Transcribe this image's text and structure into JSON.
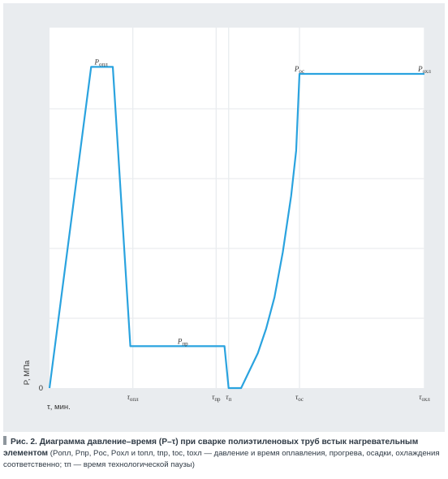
{
  "chart_data": {
    "type": "line",
    "ylabel": "P, МПа",
    "xlabel": "τ, мин.",
    "y_zero_label": "0",
    "x_ticks": [
      {
        "value": 1.0,
        "main": "τ",
        "sub": "опл"
      },
      {
        "value": 2.0,
        "main": "τ",
        "sub": "пр"
      },
      {
        "value": 2.15,
        "main": "τ",
        "sub": "п"
      },
      {
        "value": 3.0,
        "main": "τ",
        "sub": "ос"
      },
      {
        "value": 4.5,
        "main": "τ",
        "sub": "охл"
      }
    ],
    "xlim": [
      0,
      4.5
    ],
    "ylim": [
      0,
      1.0
    ],
    "grid": true,
    "series": [
      {
        "color": "#2aa3df",
        "points": [
          [
            0,
            0
          ],
          [
            0.5,
            0.92
          ],
          [
            0.76,
            0.92
          ],
          [
            0.97,
            0.12
          ],
          [
            2.1,
            0.12
          ],
          [
            2.15,
            0
          ],
          [
            2.3,
            0
          ],
          [
            2.4,
            0.05
          ],
          [
            2.5,
            0.1
          ],
          [
            2.6,
            0.17
          ],
          [
            2.7,
            0.26
          ],
          [
            2.8,
            0.39
          ],
          [
            2.9,
            0.55
          ],
          [
            2.96,
            0.68
          ],
          [
            3.0,
            0.9
          ],
          [
            4.5,
            0.9
          ]
        ]
      }
    ],
    "annotations": [
      {
        "main": "P",
        "sub": "опл",
        "x": 0.62,
        "y": 0.92
      },
      {
        "main": "P",
        "sub": "пр",
        "x": 1.6,
        "y": 0.12
      },
      {
        "main": "P",
        "sub": "ос",
        "x": 3.0,
        "y": 0.9
      },
      {
        "main": "P",
        "sub": "охл",
        "x": 4.5,
        "y": 0.9
      }
    ]
  },
  "caption": {
    "title": "Рис. 2. Диаграмма давление–время (P–τ) при сварке полиэтиленовых труб встык нагревательным элементом",
    "body": " (Pопл, Pпр, Pос, Pохл и tопл, tпр, tос, tохл — давление и время оплавления, прогрева, осадки, охлаждения соответственно; τп — время технологической паузы)"
  }
}
